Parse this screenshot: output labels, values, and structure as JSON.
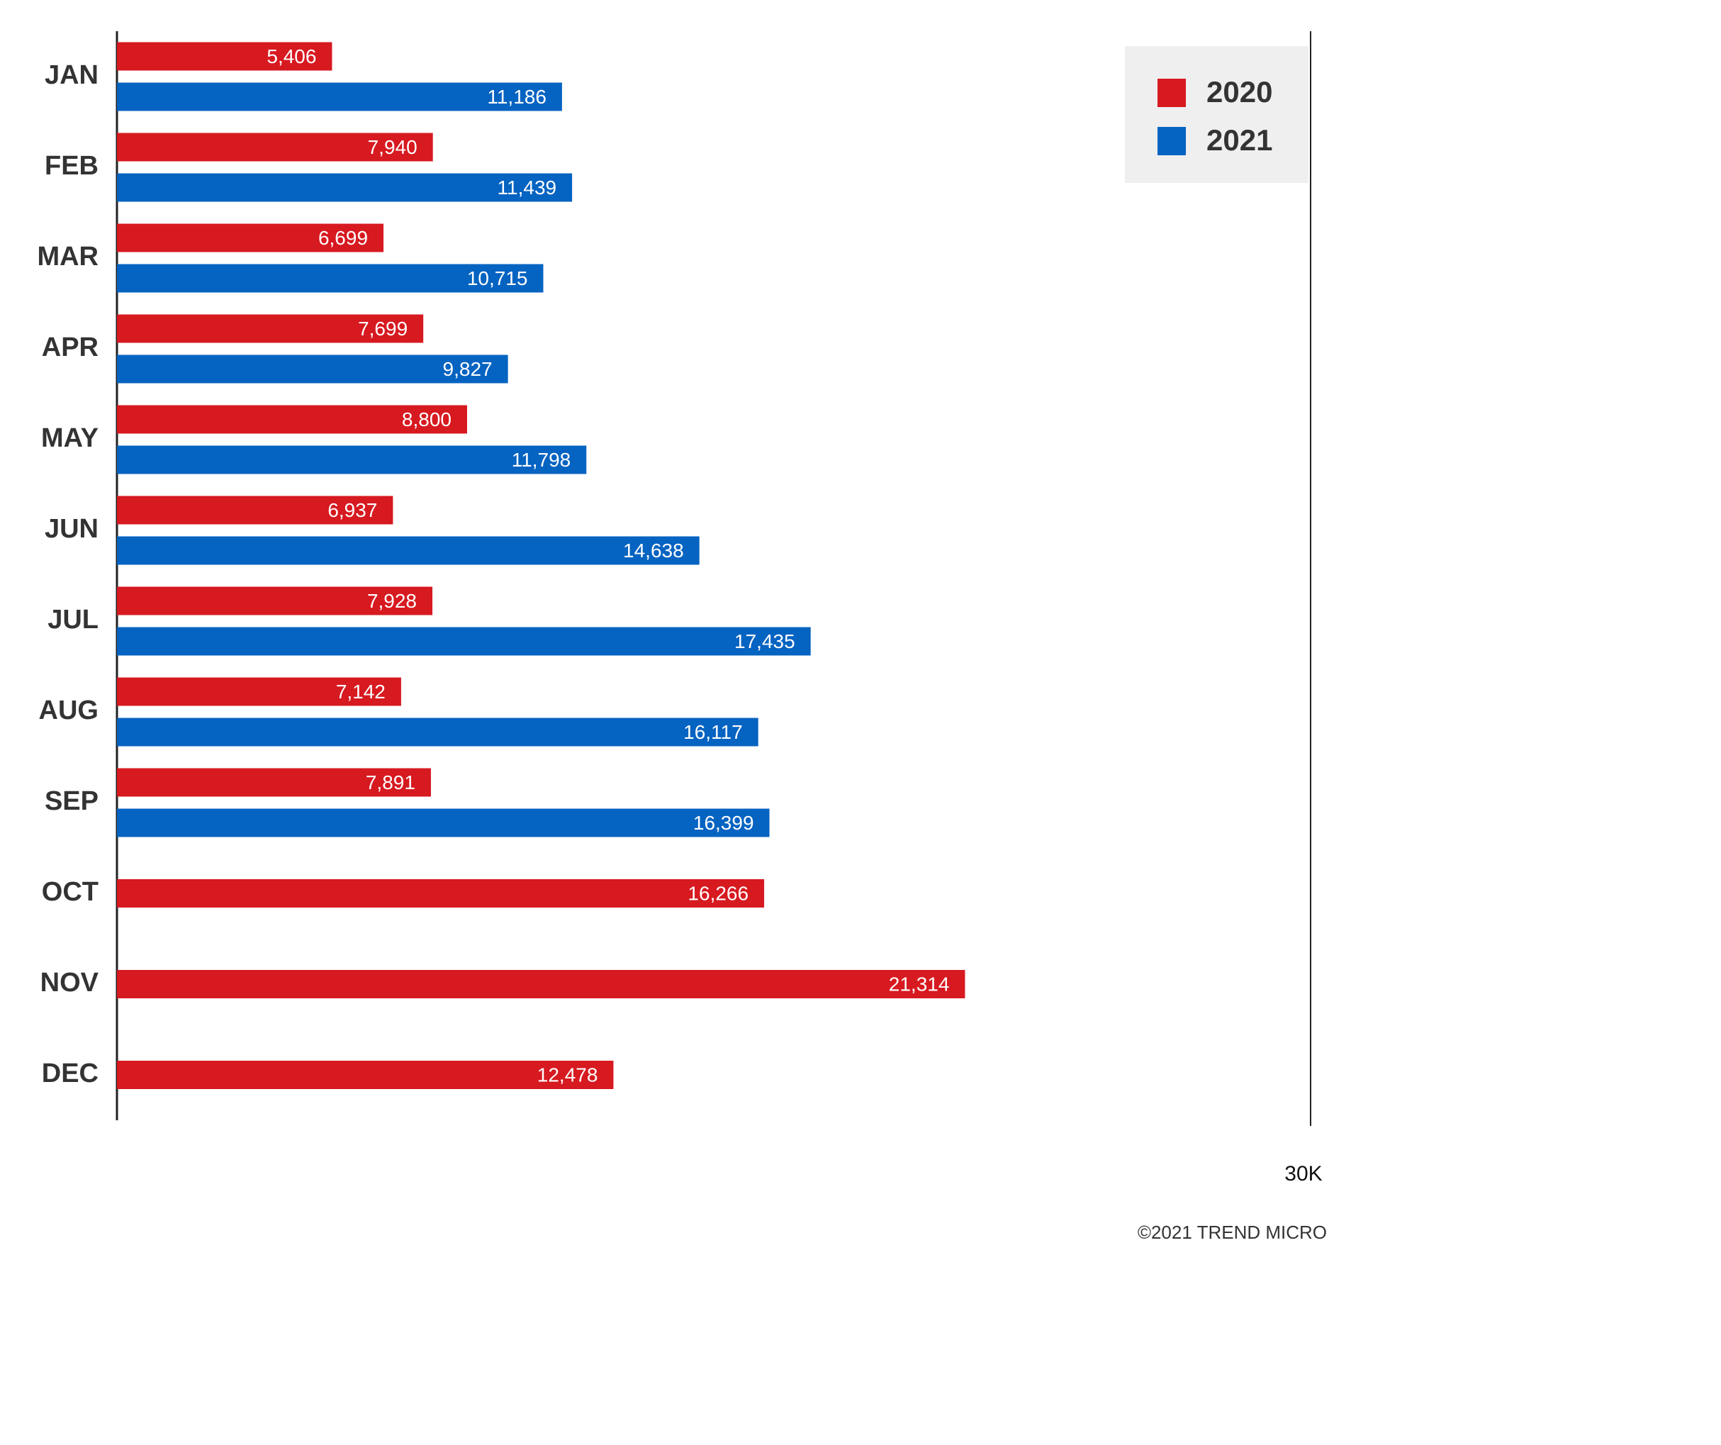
{
  "chart_data": {
    "type": "hbar",
    "categories": [
      "JAN",
      "FEB",
      "MAR",
      "APR",
      "MAY",
      "JUN",
      "JUL",
      "AUG",
      "SEP",
      "OCT",
      "NOV",
      "DEC"
    ],
    "series": [
      {
        "name": "2020",
        "color": "#d71920",
        "values": [
          5406,
          7940,
          6699,
          7699,
          8800,
          6937,
          7928,
          7142,
          7891,
          16266,
          21314,
          12478
        ],
        "value_labels": [
          "5,406",
          "7,940",
          "6,699",
          "7,699",
          "8,800",
          "6,937",
          "7,928",
          "7,142",
          "7,891",
          "16,266",
          "21,314",
          "12,478"
        ]
      },
      {
        "name": "2021",
        "color": "#0563c1",
        "values": [
          11186,
          11439,
          10715,
          9827,
          11798,
          14638,
          17435,
          16117,
          16399,
          null,
          null,
          null
        ],
        "value_labels": [
          "11,186",
          "11,439",
          "10,715",
          "9,827",
          "11,798",
          "14,638",
          "17,435",
          "16,117",
          "16,399",
          null,
          null,
          null
        ]
      }
    ],
    "xlim": [
      0,
      30000
    ],
    "xticks": [
      {
        "value": 30000,
        "label": "30K"
      }
    ],
    "legend": "top-right",
    "source": "©2021 TREND MICRO"
  }
}
